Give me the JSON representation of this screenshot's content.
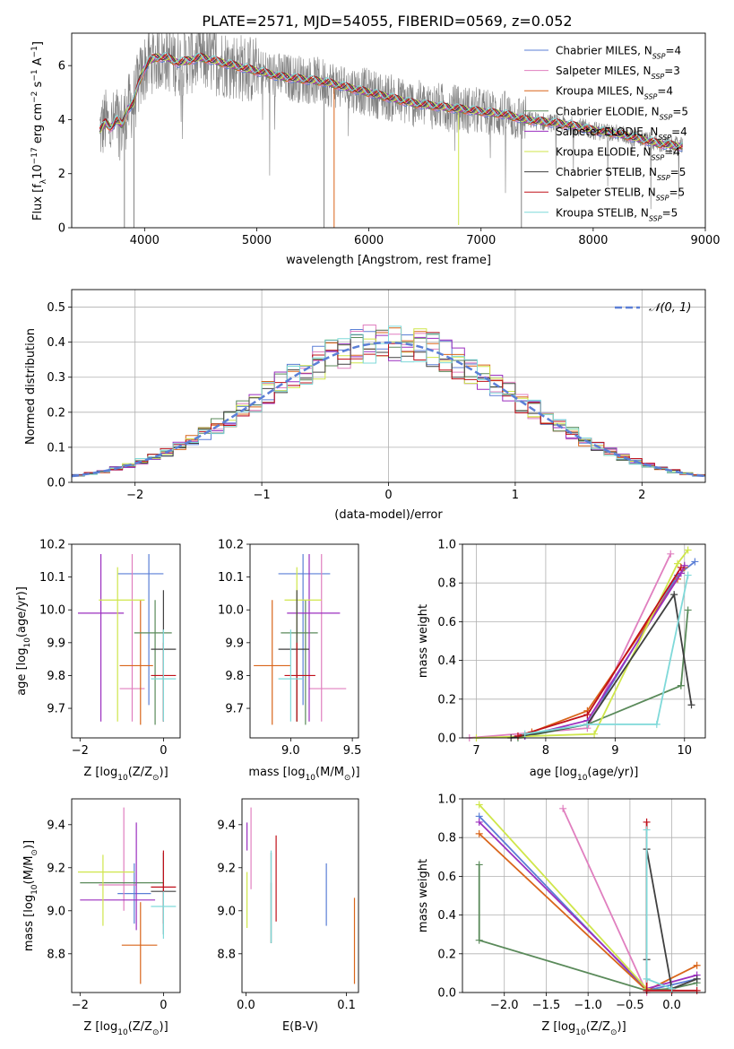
{
  "figure_title": "PLATE=2571, MJD=54055, FIBERID=0569, z=0.052",
  "chart_data": [
    {
      "type": "line",
      "id": "spectrum",
      "xlabel": "wavelength [Angstrom, rest frame]",
      "ylabel": "Flux [f",
      "ylabel_parts": [
        "Flux [f",
        "λ",
        "10",
        "−17",
        " erg cm",
        "−2",
        " s",
        "−1",
        " A",
        "−1",
        "]"
      ],
      "xlim": [
        3350,
        9000
      ],
      "ylim": [
        0,
        7.2
      ],
      "xticks": [
        4000,
        5000,
        6000,
        7000,
        8000,
        9000
      ],
      "yticks": [
        0,
        2,
        4,
        6
      ],
      "grid": false,
      "legend_position": "top-right",
      "continuum": {
        "x": [
          3600,
          3650,
          3700,
          3750,
          3800,
          3850,
          3900,
          3950,
          4000,
          4050,
          4100,
          4200,
          4300,
          4400,
          4500,
          4600,
          4700,
          4800,
          4900,
          5000,
          5200,
          5400,
          5600,
          5800,
          6000,
          6200,
          6400,
          6600,
          6800,
          7000,
          7200,
          7400,
          7600,
          7800,
          8000,
          8200,
          8400,
          8600,
          8800
        ],
        "y": [
          3.6,
          3.9,
          3.7,
          4.0,
          3.8,
          4.4,
          4.6,
          5.4,
          5.9,
          6.2,
          6.3,
          6.3,
          6.1,
          6.2,
          6.3,
          6.2,
          6.1,
          6.0,
          5.9,
          5.8,
          5.6,
          5.5,
          5.4,
          5.2,
          5.0,
          4.8,
          4.6,
          4.5,
          4.4,
          4.3,
          4.2,
          4.0,
          3.9,
          3.8,
          3.6,
          3.5,
          3.3,
          3.1,
          3.0
        ]
      },
      "series": [
        {
          "name": "Chabrier MILES, N",
          "nssp": "4",
          "color": "#5b7fd6"
        },
        {
          "name": "Salpeter MILES, N",
          "nssp": "3",
          "color": "#e07fbf"
        },
        {
          "name": "Kroupa MILES, N",
          "nssp": "4",
          "color": "#d9651a"
        },
        {
          "name": "Chabrier ELODIE, N",
          "nssp": "5",
          "color": "#5a8a5a"
        },
        {
          "name": "Salpeter ELODIE, N",
          "nssp": "4",
          "color": "#9b2fbf"
        },
        {
          "name": "Kroupa ELODIE, N",
          "nssp": "4",
          "color": "#cfe64a"
        },
        {
          "name": "Chabrier STELIB, N",
          "nssp": "5",
          "color": "#404040"
        },
        {
          "name": "Salpeter STELIB, N",
          "nssp": "5",
          "color": "#c0101a"
        },
        {
          "name": "Kroupa STELIB, N",
          "nssp": "5",
          "color": "#7fd9d9"
        }
      ],
      "observed_color": "#808080"
    },
    {
      "type": "histogram",
      "id": "residuals",
      "xlabel": "(data-model)/error",
      "ylabel": "Normed distribution",
      "xlim": [
        -2.5,
        2.5
      ],
      "ylim": [
        0,
        0.55
      ],
      "xticks": [
        -2,
        -1,
        0,
        1,
        2
      ],
      "yticks": [
        0.0,
        0.1,
        0.2,
        0.3,
        0.4,
        0.5
      ],
      "grid": true,
      "legend_position": "top-right",
      "gauss_label": "𝒩(0, 1)",
      "gauss_color": "#5b7fd6",
      "bin_width": 0.1
    },
    {
      "type": "scatter",
      "id": "age_vs_Z",
      "xlabel": "Z [log",
      "ylabel": "age  [log",
      "xlim": [
        -2.2,
        0.4
      ],
      "ylim": [
        9.61,
        10.2
      ],
      "xticks": [
        -2,
        0
      ],
      "yticks": [
        9.7,
        9.8,
        9.9,
        10.0,
        10.1,
        10.2
      ],
      "grid": false,
      "points": [
        {
          "x": -0.35,
          "y": 10.11,
          "xerr": [
            0.75,
            0.35
          ],
          "yerr": [
            0.4,
            0.06
          ],
          "color": "#5b7fd6"
        },
        {
          "x": -0.75,
          "y": 9.76,
          "xerr": [
            0.3,
            0.3
          ],
          "yerr": [
            0.1,
            0.41
          ],
          "color": "#e07fbf"
        },
        {
          "x": -0.55,
          "y": 9.83,
          "xerr": [
            0.5,
            0.3
          ],
          "yerr": [
            0.18,
            0.2
          ],
          "color": "#d9651a"
        },
        {
          "x": -0.2,
          "y": 9.93,
          "xerr": [
            0.5,
            0.4
          ],
          "yerr": [
            0.28,
            0.1
          ],
          "color": "#5a8a5a"
        },
        {
          "x": -1.5,
          "y": 9.99,
          "xerr": [
            0.55,
            0.55
          ],
          "yerr": [
            0.33,
            0.18
          ],
          "color": "#9b2fbf"
        },
        {
          "x": -1.1,
          "y": 10.03,
          "xerr": [
            0.45,
            0.65
          ],
          "yerr": [
            0.37,
            0.1
          ],
          "color": "#cfe64a"
        },
        {
          "x": 0.0,
          "y": 9.88,
          "xerr": [
            0.3,
            0.3
          ],
          "yerr": [
            0.22,
            0.18
          ],
          "color": "#404040"
        },
        {
          "x": 0.0,
          "y": 9.8,
          "xerr": [
            0.3,
            0.3
          ],
          "yerr": [
            0.14,
            0.1
          ],
          "color": "#c0101a"
        },
        {
          "x": 0.0,
          "y": 9.79,
          "xerr": [
            0.3,
            0.3
          ],
          "yerr": [
            0.13,
            0.15
          ],
          "color": "#7fd9d9"
        }
      ]
    },
    {
      "type": "scatter",
      "id": "age_vs_mass",
      "xlabel": "mass [log",
      "ylabel": "",
      "xlim": [
        8.67,
        9.55
      ],
      "ylim": [
        9.61,
        10.2
      ],
      "xticks": [
        9.0,
        9.5
      ],
      "yticks": [
        9.7,
        9.8,
        9.9,
        10.0,
        10.1,
        10.2
      ],
      "grid": false,
      "points": [
        {
          "x": 9.1,
          "y": 10.11,
          "xerr": [
            0.2,
            0.22
          ],
          "yerr": [
            0.4,
            0.06
          ],
          "color": "#5b7fd6"
        },
        {
          "x": 9.25,
          "y": 9.76,
          "xerr": [
            0.1,
            0.2
          ],
          "yerr": [
            0.1,
            0.41
          ],
          "color": "#e07fbf"
        },
        {
          "x": 8.85,
          "y": 9.83,
          "xerr": [
            0.15,
            0.15
          ],
          "yerr": [
            0.18,
            0.2
          ],
          "color": "#d9651a"
        },
        {
          "x": 9.12,
          "y": 9.93,
          "xerr": [
            0.2,
            0.1
          ],
          "yerr": [
            0.28,
            0.1
          ],
          "color": "#5a8a5a"
        },
        {
          "x": 9.15,
          "y": 9.99,
          "xerr": [
            0.18,
            0.25
          ],
          "yerr": [
            0.33,
            0.18
          ],
          "color": "#9b2fbf"
        },
        {
          "x": 9.05,
          "y": 10.03,
          "xerr": [
            0.1,
            0.2
          ],
          "yerr": [
            0.37,
            0.1
          ],
          "color": "#cfe64a"
        },
        {
          "x": 9.05,
          "y": 9.88,
          "xerr": [
            0.15,
            0.1
          ],
          "yerr": [
            0.22,
            0.18
          ],
          "color": "#404040"
        },
        {
          "x": 9.05,
          "y": 9.8,
          "xerr": [
            0.1,
            0.15
          ],
          "yerr": [
            0.14,
            0.1
          ],
          "color": "#c0101a"
        },
        {
          "x": 9.0,
          "y": 9.79,
          "xerr": [
            0.1,
            0.1
          ],
          "yerr": [
            0.13,
            0.15
          ],
          "color": "#7fd9d9"
        }
      ]
    },
    {
      "type": "line",
      "id": "weight_vs_age",
      "xlabel": "age  [log",
      "ylabel": "mass weight",
      "xlim": [
        6.8,
        10.3
      ],
      "ylim": [
        0,
        1
      ],
      "xticks": [
        7,
        8,
        9,
        10
      ],
      "yticks": [
        0.0,
        0.2,
        0.4,
        0.6,
        0.8,
        1.0
      ],
      "grid": true,
      "series": [
        {
          "color": "#5b7fd6",
          "x": [
            7.7,
            8.6,
            9.9,
            10.15
          ],
          "y": [
            0.01,
            0.07,
            0.84,
            0.91
          ]
        },
        {
          "color": "#e07fbf",
          "x": [
            6.9,
            8.6,
            9.8
          ],
          "y": [
            0.0,
            0.05,
            0.95
          ]
        },
        {
          "color": "#d9651a",
          "x": [
            7.8,
            8.6,
            9.9,
            10.0
          ],
          "y": [
            0.03,
            0.14,
            0.82,
            0.88
          ]
        },
        {
          "color": "#5a8a5a",
          "x": [
            7.6,
            8.6,
            9.95,
            10.05,
            9.95
          ],
          "y": [
            0.0,
            0.07,
            0.27,
            0.66,
            0.27
          ]
        },
        {
          "color": "#9b2fbf",
          "x": [
            7.7,
            8.6,
            9.95,
            10.0
          ],
          "y": [
            0.01,
            0.09,
            0.85,
            0.89
          ]
        },
        {
          "color": "#cfe64a",
          "x": [
            7.0,
            8.7,
            9.9,
            10.05
          ],
          "y": [
            0.0,
            0.02,
            0.9,
            0.97
          ]
        },
        {
          "color": "#404040",
          "x": [
            7.5,
            8.6,
            9.85,
            10.1
          ],
          "y": [
            0.0,
            0.07,
            0.74,
            0.17
          ]
        },
        {
          "color": "#c0101a",
          "x": [
            7.6,
            8.6,
            9.95
          ],
          "y": [
            0.01,
            0.12,
            0.88
          ]
        },
        {
          "color": "#7fd9d9",
          "x": [
            7.7,
            8.6,
            9.6,
            10.05
          ],
          "y": [
            0.02,
            0.07,
            0.07,
            0.84
          ]
        }
      ]
    },
    {
      "type": "scatter",
      "id": "mass_vs_Z",
      "xlabel": "Z [log",
      "ylabel": "mass [log",
      "xlim": [
        -2.2,
        0.4
      ],
      "ylim": [
        8.62,
        9.52
      ],
      "xticks": [
        -2,
        0
      ],
      "yticks": [
        8.8,
        9.0,
        9.2,
        9.4
      ],
      "grid": false,
      "points": [
        {
          "x": -0.7,
          "y": 9.08,
          "xerr": [
            0.4,
            0.4
          ],
          "yerr": [
            0.14,
            0.14
          ],
          "color": "#5b7fd6"
        },
        {
          "x": -0.95,
          "y": 9.12,
          "xerr": [
            0.6,
            0.3
          ],
          "yerr": [
            0.12,
            0.36
          ],
          "color": "#e07fbf"
        },
        {
          "x": -0.55,
          "y": 8.84,
          "xerr": [
            0.45,
            0.4
          ],
          "yerr": [
            0.18,
            0.2
          ],
          "color": "#d9651a"
        },
        {
          "x": -0.9,
          "y": 9.13,
          "xerr": [
            1.1,
            0.9
          ],
          "yerr": [
            0.0,
            0.0
          ],
          "color": "#5a8a5a"
        },
        {
          "x": -0.65,
          "y": 9.05,
          "xerr": [
            1.35,
            0.45
          ],
          "yerr": [
            0.14,
            0.36
          ],
          "color": "#9b2fbf"
        },
        {
          "x": -1.45,
          "y": 9.18,
          "xerr": [
            0.6,
            0.75
          ],
          "yerr": [
            0.25,
            0.08
          ],
          "color": "#cfe64a"
        },
        {
          "x": 0.0,
          "y": 9.09,
          "xerr": [
            0.3,
            0.3
          ],
          "yerr": [
            0.2,
            0.18
          ],
          "color": "#404040"
        },
        {
          "x": 0.0,
          "y": 9.11,
          "xerr": [
            0.3,
            0.3
          ],
          "yerr": [
            0.17,
            0.17
          ],
          "color": "#c0101a"
        },
        {
          "x": 0.0,
          "y": 9.02,
          "xerr": [
            0.3,
            0.3
          ],
          "yerr": [
            0.15,
            0.07
          ],
          "color": "#7fd9d9"
        }
      ]
    },
    {
      "type": "scatter",
      "id": "mass_vs_ebv",
      "xlabel": "E(B-V)",
      "ylabel": "",
      "xlim": [
        -0.004,
        0.112
      ],
      "ylim": [
        8.62,
        9.52
      ],
      "xticks": [
        0.0,
        0.1
      ],
      "yticks": [
        8.8,
        9.0,
        9.2,
        9.4
      ],
      "grid": false,
      "points": [
        {
          "x": 0.08,
          "y": 9.08,
          "xerr": [
            0,
            0
          ],
          "yerr": [
            0.15,
            0.14
          ],
          "color": "#5b7fd6"
        },
        {
          "x": 0.005,
          "y": 9.29,
          "xerr": [
            0,
            0
          ],
          "yerr": [
            0.19,
            0.19
          ],
          "color": "#e07fbf"
        },
        {
          "x": 0.108,
          "y": 8.86,
          "xerr": [
            0,
            0
          ],
          "yerr": [
            0.2,
            0.2
          ],
          "color": "#d9651a"
        },
        {
          "x": 0.025,
          "y": 9.13,
          "xerr": [
            0,
            0
          ],
          "yerr": [
            0.28,
            0.0
          ],
          "color": "#5a8a5a"
        },
        {
          "x": 0.001,
          "y": 9.35,
          "xerr": [
            0,
            0
          ],
          "yerr": [
            0.07,
            0.06
          ],
          "color": "#9b2fbf"
        },
        {
          "x": 0.001,
          "y": 9.05,
          "xerr": [
            0,
            0
          ],
          "yerr": [
            0.13,
            0.13
          ],
          "color": "#cfe64a"
        },
        {
          "x": 0.025,
          "y": 9.05,
          "xerr": [
            0,
            0
          ],
          "yerr": [
            0.2,
            0.22
          ],
          "color": "#404040"
        },
        {
          "x": 0.03,
          "y": 9.15,
          "xerr": [
            0,
            0
          ],
          "yerr": [
            0.2,
            0.2
          ],
          "color": "#c0101a"
        },
        {
          "x": 0.025,
          "y": 9.06,
          "xerr": [
            0,
            0
          ],
          "yerr": [
            0.21,
            0.22
          ],
          "color": "#7fd9d9"
        }
      ]
    },
    {
      "type": "line",
      "id": "weight_vs_Z",
      "xlabel": "Z [log",
      "ylabel": "mass weight",
      "xlim": [
        -2.5,
        0.4
      ],
      "ylim": [
        0,
        1
      ],
      "xticks": [
        -2.0,
        -1.5,
        -1.0,
        -0.5,
        0.0
      ],
      "yticks": [
        0.0,
        0.2,
        0.4,
        0.6,
        0.8,
        1.0
      ],
      "grid": true,
      "series": [
        {
          "color": "#5b7fd6",
          "x": [
            -2.3,
            -0.3,
            0.3
          ],
          "y": [
            0.91,
            0.01,
            0.07
          ]
        },
        {
          "color": "#e07fbf",
          "x": [
            -1.3,
            -0.3
          ],
          "y": [
            0.95,
            0.0
          ]
        },
        {
          "color": "#d9651a",
          "x": [
            -2.3,
            -0.3,
            0.3
          ],
          "y": [
            0.82,
            0.01,
            0.14
          ]
        },
        {
          "color": "#5a8a5a",
          "x": [
            -2.3,
            -2.3,
            -0.3,
            0.0,
            0.3
          ],
          "y": [
            0.66,
            0.27,
            0.01,
            0.02,
            0.05
          ]
        },
        {
          "color": "#9b2fbf",
          "x": [
            -2.3,
            -0.3,
            0.3
          ],
          "y": [
            0.88,
            0.02,
            0.09
          ]
        },
        {
          "color": "#cfe64a",
          "x": [
            -2.3,
            -0.3
          ],
          "y": [
            0.97,
            0.02
          ]
        },
        {
          "color": "#404040",
          "x": [
            -0.3,
            -0.3,
            0.0,
            0.3
          ],
          "y": [
            0.17,
            0.74,
            0.02,
            0.07
          ]
        },
        {
          "color": "#c0101a",
          "x": [
            -0.3,
            -0.3,
            0.0,
            0.3
          ],
          "y": [
            0.88,
            0.01,
            0.01,
            0.01
          ]
        },
        {
          "color": "#7fd9d9",
          "x": [
            -0.3,
            -0.3,
            0.0
          ],
          "y": [
            0.84,
            0.07,
            0.02
          ]
        }
      ]
    }
  ]
}
